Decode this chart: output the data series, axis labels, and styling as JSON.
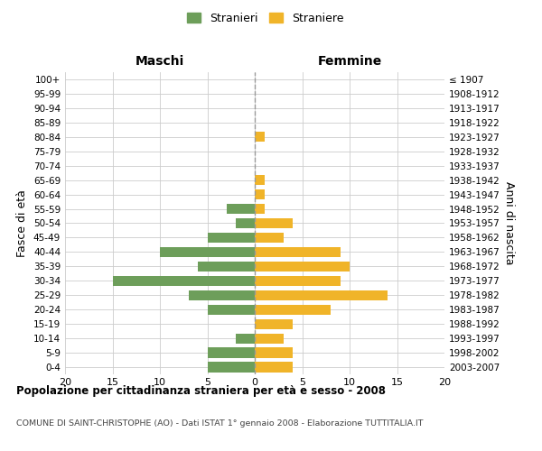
{
  "age_groups": [
    "100+",
    "95-99",
    "90-94",
    "85-89",
    "80-84",
    "75-79",
    "70-74",
    "65-69",
    "60-64",
    "55-59",
    "50-54",
    "45-49",
    "40-44",
    "35-39",
    "30-34",
    "25-29",
    "20-24",
    "15-19",
    "10-14",
    "5-9",
    "0-4"
  ],
  "birth_years": [
    "≤ 1907",
    "1908-1912",
    "1913-1917",
    "1918-1922",
    "1923-1927",
    "1928-1932",
    "1933-1937",
    "1938-1942",
    "1943-1947",
    "1948-1952",
    "1953-1957",
    "1958-1962",
    "1963-1967",
    "1968-1972",
    "1973-1977",
    "1978-1982",
    "1983-1987",
    "1988-1992",
    "1993-1997",
    "1998-2002",
    "2003-2007"
  ],
  "maschi": [
    0,
    0,
    0,
    0,
    0,
    0,
    0,
    0,
    0,
    3,
    2,
    5,
    10,
    6,
    15,
    7,
    5,
    0,
    2,
    5,
    5
  ],
  "femmine": [
    0,
    0,
    0,
    0,
    1,
    0,
    0,
    1,
    1,
    1,
    4,
    3,
    9,
    10,
    9,
    14,
    8,
    4,
    3,
    4,
    4
  ],
  "color_maschi": "#6d9e5a",
  "color_femmine": "#f0b429",
  "background_color": "#ffffff",
  "grid_color": "#cccccc",
  "title": "Popolazione per cittadinanza straniera per età e sesso - 2008",
  "subtitle": "COMUNE DI SAINT-CHRISTOPHE (AO) - Dati ISTAT 1° gennaio 2008 - Elaborazione TUTTITALIA.IT",
  "xlabel_maschi": "Maschi",
  "xlabel_femmine": "Femmine",
  "ylabel_left": "Fasce di età",
  "ylabel_right": "Anni di nascita",
  "legend_maschi": "Stranieri",
  "legend_femmine": "Straniere",
  "xlim": 20,
  "bar_height": 0.7
}
